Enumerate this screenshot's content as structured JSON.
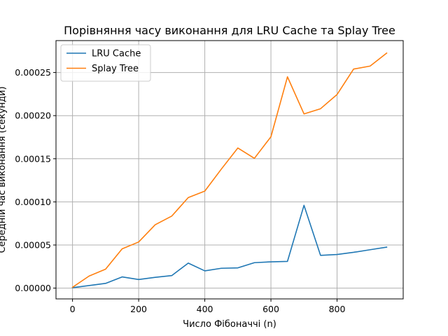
{
  "chart_data": {
    "type": "line",
    "title": "Порівняння часу виконання для LRU Cache та Splay Tree",
    "xlabel": "Число Фібоначчі (n)",
    "ylabel": "Середній час виконання (секунди)",
    "xlim": [
      -50,
      1000
    ],
    "ylim": [
      -1.25e-05,
      0.000287
    ],
    "grid": true,
    "legend_position": "top-left",
    "x_ticks": [
      0,
      200,
      400,
      600,
      800
    ],
    "x_tick_labels": [
      "0",
      "200",
      "400",
      "600",
      "800"
    ],
    "y_ticks": [
      0,
      5e-05,
      0.0001,
      0.00015,
      0.0002,
      0.00025
    ],
    "y_tick_labels": [
      "0.00000",
      "0.00005",
      "0.00010",
      "0.00015",
      "0.00020",
      "0.00025"
    ],
    "x": [
      0,
      50,
      100,
      150,
      200,
      250,
      300,
      350,
      400,
      450,
      500,
      550,
      600,
      650,
      700,
      750,
      800,
      850,
      900,
      950
    ],
    "series": [
      {
        "name": "LRU Cache",
        "color": "#1f77b4",
        "values": [
          5e-07,
          3e-06,
          5.5e-06,
          1.3e-05,
          1e-05,
          1.25e-05,
          1.45e-05,
          2.9e-05,
          2e-05,
          2.3e-05,
          2.35e-05,
          2.95e-05,
          3.05e-05,
          3.1e-05,
          9.6e-05,
          3.8e-05,
          3.9e-05,
          4.15e-05,
          4.45e-05,
          4.75e-05
        ]
      },
      {
        "name": "Splay Tree",
        "color": "#ff7f0e",
        "values": [
          1e-06,
          1.4e-05,
          2.2e-05,
          4.55e-05,
          5.35e-05,
          7.35e-05,
          8.35e-05,
          0.000105,
          0.0001125,
          0.000138,
          0.0001625,
          0.0001505,
          0.0001755,
          0.000245,
          0.000202,
          0.000208,
          0.0002245,
          0.000254,
          0.0002575,
          0.0002725
        ]
      }
    ]
  }
}
